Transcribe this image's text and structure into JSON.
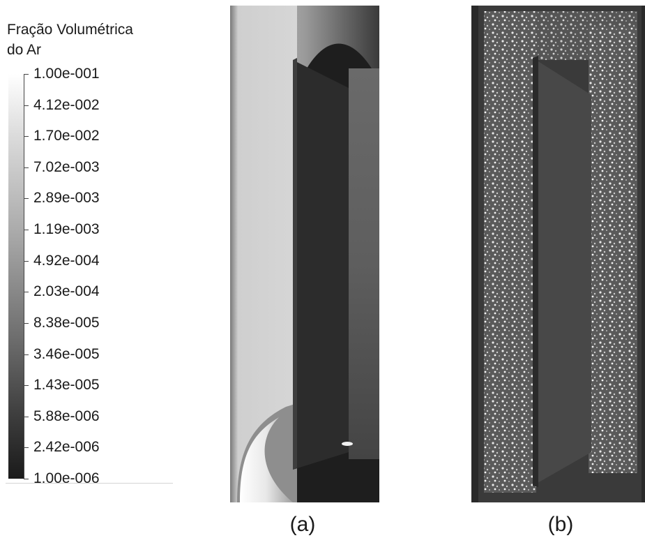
{
  "legend": {
    "title_line1": "Fração Volumétrica",
    "title_line2": "do Ar",
    "labels": [
      "1.00e-001",
      "4.12e-002",
      "1.70e-002",
      "7.02e-003",
      "2.89e-003",
      "1.19e-003",
      "4.92e-004",
      "2.03e-004",
      "8.38e-005",
      "3.46e-005",
      "1.43e-005",
      "5.88e-006",
      "2.42e-006",
      "1.00e-006"
    ],
    "colormap": "grayscale",
    "scale": "log"
  },
  "panels": [
    {
      "label": "(a)",
      "kind": "simulation-contour"
    },
    {
      "label": "(b)",
      "kind": "experimental-photo"
    }
  ]
}
